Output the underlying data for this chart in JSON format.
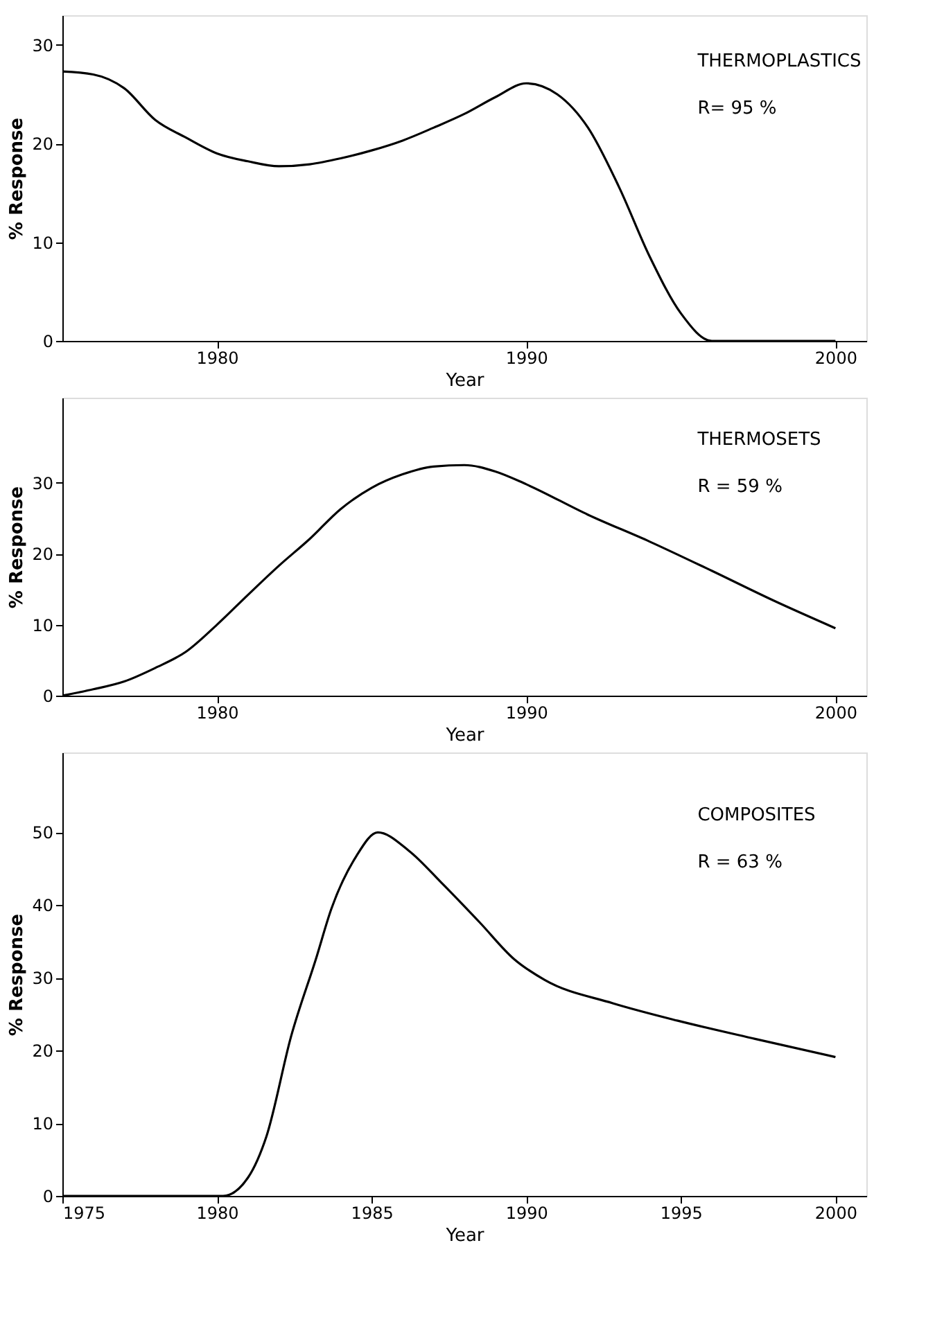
{
  "chart_data": [
    {
      "type": "line",
      "xlabel": "Year",
      "ylabel": "% Response",
      "annotations": [
        "THERMOPLASTICS",
        "R= 95 %"
      ],
      "grid": false,
      "xlim": [
        1975,
        2001
      ],
      "xticks": [
        1980,
        1990,
        2000
      ],
      "ylim": [
        0,
        33
      ],
      "yticks": [
        0,
        10,
        20,
        30
      ],
      "series": [
        {
          "color": "#000000",
          "x": [
            1975,
            1976,
            1977,
            1978,
            1979,
            1980,
            1981,
            1982,
            1983,
            1984,
            1985,
            1986,
            1987,
            1988,
            1989,
            1990,
            1991,
            1992,
            1993,
            1994,
            1995,
            1996,
            2000
          ],
          "values": [
            27.3,
            27,
            25.6,
            22.4,
            20.6,
            19,
            18.2,
            17.7,
            17.9,
            18.5,
            19.3,
            20.3,
            21.6,
            23,
            24.7,
            26.1,
            25,
            21.6,
            15.6,
            8.5,
            2.8,
            0,
            0
          ]
        }
      ]
    },
    {
      "type": "line",
      "xlabel": "Year",
      "ylabel": "% Response",
      "annotations": [
        "THERMOSETS",
        "R = 59  %"
      ],
      "grid": false,
      "xlim": [
        1975,
        2001
      ],
      "xticks": [
        1980,
        1990,
        2000
      ],
      "ylim": [
        0,
        42
      ],
      "yticks": [
        0,
        10,
        20,
        30
      ],
      "series": [
        {
          "color": "#000000",
          "x": [
            1975,
            1976,
            1977,
            1978,
            1979,
            1980,
            1981,
            1982,
            1983,
            1984,
            1985,
            1986,
            1987,
            1988,
            1989,
            1990,
            1992,
            1994,
            1996,
            1998,
            2000
          ],
          "values": [
            0,
            0.9,
            2,
            3.9,
            6.2,
            10,
            14.2,
            18.3,
            22.1,
            26.3,
            29.3,
            31.2,
            32.3,
            32.5,
            31.6,
            29.8,
            25.5,
            21.7,
            17.6,
            13.4,
            9.5
          ]
        }
      ]
    },
    {
      "type": "line",
      "xlabel": "Year",
      "ylabel": "% Response",
      "annotations": [
        "COMPOSITES",
        "R = 63 %"
      ],
      "grid": false,
      "xlim": [
        1975,
        2001
      ],
      "xticks": [
        1975,
        1980,
        1985,
        1990,
        1995,
        2000
      ],
      "ylim": [
        0,
        61
      ],
      "yticks": [
        0,
        10,
        20,
        30,
        40,
        50
      ],
      "series": [
        {
          "color": "#000000",
          "x": [
            1975,
            1980.2,
            1981,
            1981.6,
            1982.4,
            1983.2,
            1983.7,
            1984.5,
            1985.2,
            1986.2,
            1987.3,
            1988.5,
            1989.6,
            1990.6,
            1992.8,
            1994.9,
            1997.4,
            2000
          ],
          "values": [
            0,
            0,
            2.5,
            8.2,
            22,
            32.6,
            39.5,
            46.7,
            50,
            47.5,
            42.9,
            37.6,
            32.6,
            29.7,
            26.5,
            24.1,
            21.6,
            19.1
          ]
        }
      ]
    }
  ]
}
